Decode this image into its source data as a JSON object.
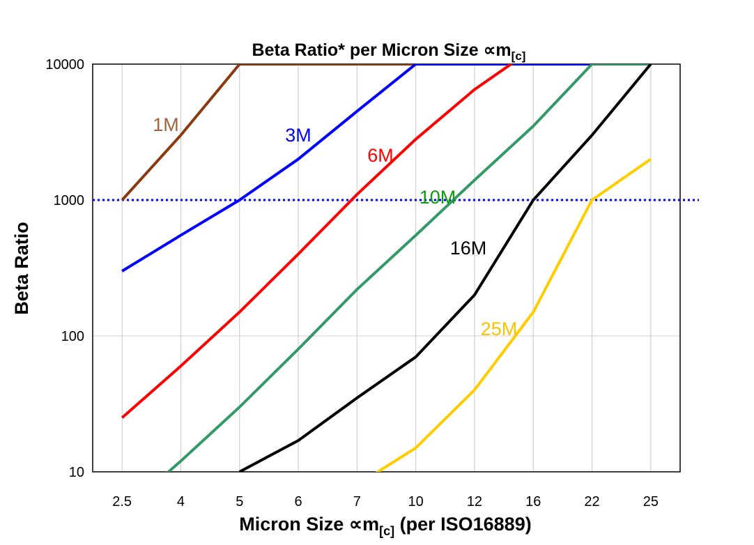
{
  "chart_data": {
    "type": "line",
    "title": "Beta Ratio* per Micron Size ∝m",
    "title_subscript": "[c]",
    "xlabel": "Micron Size ∝m",
    "xlabel_subscript": "[c]",
    "xlabel_suffix": " (per ISO16889)",
    "ylabel": "Beta Ratio",
    "y_scale": "log",
    "ylim": [
      10,
      10000
    ],
    "y_ticks": [
      "10",
      "100",
      "1000",
      "10000"
    ],
    "categories": [
      "2.5",
      "4",
      "5",
      "6",
      "7",
      "10",
      "12",
      "16",
      "22",
      "25"
    ],
    "grid": {
      "vertical": true,
      "horizontal": true
    },
    "reference_line": {
      "y": 1000,
      "style": "dotted",
      "color": "#0000ee"
    },
    "series": [
      {
        "name": "1M",
        "color": "#8b3a0f",
        "label_color": "#a0623a",
        "values": [
          1000,
          3000,
          10000,
          10000,
          10000,
          10000,
          null,
          null,
          null,
          null
        ]
      },
      {
        "name": "3M",
        "color": "#0000ff",
        "label_color": "#0000ff",
        "values": [
          300,
          550,
          1000,
          2000,
          4500,
          10000,
          10000,
          10000,
          10000,
          null
        ]
      },
      {
        "name": "6M",
        "color": "#ff0000",
        "label_color": "#ff0000",
        "values": [
          25,
          60,
          150,
          400,
          1100,
          2800,
          6500,
          13000,
          null,
          null
        ]
      },
      {
        "name": "10M",
        "color": "#339966",
        "label_color": "#119911",
        "values": [
          5,
          12,
          30,
          80,
          220,
          550,
          1400,
          3500,
          10000,
          10000
        ]
      },
      {
        "name": "16M",
        "color": "#000000",
        "label_color": "#000000",
        "values": [
          null,
          null,
          10,
          17,
          35,
          70,
          200,
          1000,
          3000,
          10000
        ]
      },
      {
        "name": "25M",
        "color": "#ffcc00",
        "label_color": "#f5c400",
        "values": [
          null,
          null,
          null,
          null,
          8,
          15,
          40,
          150,
          1000,
          2000
        ]
      }
    ]
  }
}
